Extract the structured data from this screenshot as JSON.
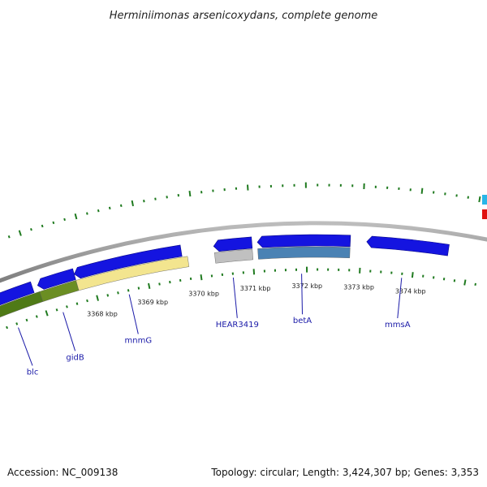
{
  "header": {
    "title": "Herminiimonas arsenicoxydans, complete genome"
  },
  "footer": {
    "accession": "Accession: NC_009138",
    "summary": "Topology: circular; Length: 3,424,307 bp; Genes: 3,353"
  },
  "colors": {
    "backbone": "#8a8a8a",
    "tick": "#1f7a1f",
    "label_line": "#1a1aa8",
    "legend_cyan": "#29b6e8",
    "legend_red": "#e01010"
  },
  "scale": {
    "unit": "kbp",
    "labeled_ticks": [
      {
        "kbp": 3368,
        "label": "3368 kbp"
      },
      {
        "kbp": 3369,
        "label": "3369 kbp"
      },
      {
        "kbp": 3370,
        "label": "3370 kbp"
      },
      {
        "kbp": 3371,
        "label": "3371 kbp"
      },
      {
        "kbp": 3372,
        "label": "3372 kbp"
      },
      {
        "kbp": 3373,
        "label": "3373 kbp"
      },
      {
        "kbp": 3374,
        "label": "3374 kbp"
      }
    ]
  },
  "cds_track": [
    {
      "start": 3365.6,
      "end": 3366.9,
      "color": "#1414e0"
    },
    {
      "start": 3367.0,
      "end": 3367.7,
      "color": "#1414e0"
    },
    {
      "start": 3367.7,
      "end": 3369.7,
      "color": "#1414e0"
    },
    {
      "start": 3370.3,
      "end": 3371.0,
      "color": "#1414e0"
    },
    {
      "start": 3371.1,
      "end": 3372.8,
      "color": "#1414e0"
    },
    {
      "start": 3373.1,
      "end": 3374.6,
      "color": "#1414e0"
    }
  ],
  "cog_track": [
    {
      "start": 3365.6,
      "end": 3367.0,
      "color": "#4f7a16"
    },
    {
      "start": 3367.0,
      "end": 3367.7,
      "color": "#6b8e23"
    },
    {
      "start": 3367.7,
      "end": 3369.8,
      "color": "#f3e58f"
    },
    {
      "start": 3370.3,
      "end": 3371.0,
      "color": "#c0c0c0"
    },
    {
      "start": 3371.1,
      "end": 3372.8,
      "color": "#4a82b4"
    }
  ],
  "genes": [
    {
      "name": "blc",
      "kbp": 3366.4
    },
    {
      "name": "gidB",
      "kbp": 3367.3
    },
    {
      "name": "mnmG",
      "kbp": 3368.6
    },
    {
      "name": "HEAR3419",
      "kbp": 3370.6
    },
    {
      "name": "betA",
      "kbp": 3371.9
    },
    {
      "name": "mmsA",
      "kbp": 3373.8
    }
  ]
}
